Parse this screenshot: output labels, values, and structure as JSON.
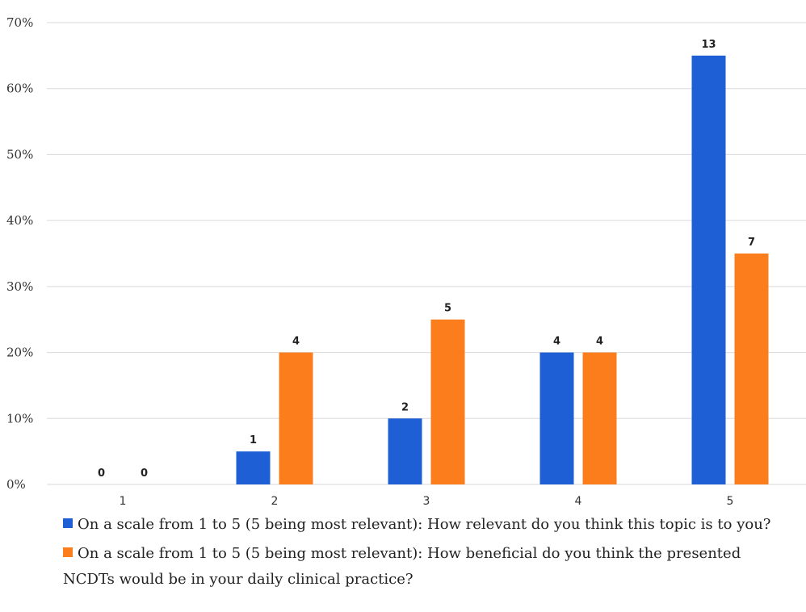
{
  "colors": {
    "series1": "#1f5fd6",
    "series2": "#fb7d1c",
    "grid": "#d9d9d9"
  },
  "chart_data": {
    "type": "bar",
    "categories": [
      "1",
      "2",
      "3",
      "4",
      "5"
    ],
    "series": [
      {
        "name": "On a scale from 1 to 5 (5 being most relevant): How relevant do you think this topic is to you?",
        "values": [
          0,
          5,
          10,
          20,
          65
        ],
        "data_labels": [
          "0",
          "1",
          "2",
          "4",
          "13"
        ]
      },
      {
        "name": "On a scale from 1 to 5 (5 being most relevant): How beneficial do you think the presented NCDTs would be in your daily clinical practice?",
        "values": [
          0,
          20,
          25,
          20,
          35
        ],
        "data_labels": [
          "0",
          "4",
          "5",
          "4",
          "7"
        ]
      }
    ],
    "y_ticks": [
      "0%",
      "10%",
      "20%",
      "30%",
      "40%",
      "50%",
      "60%",
      "70%"
    ],
    "ylim": [
      0,
      70
    ],
    "grid": true,
    "legend_position": "bottom"
  }
}
